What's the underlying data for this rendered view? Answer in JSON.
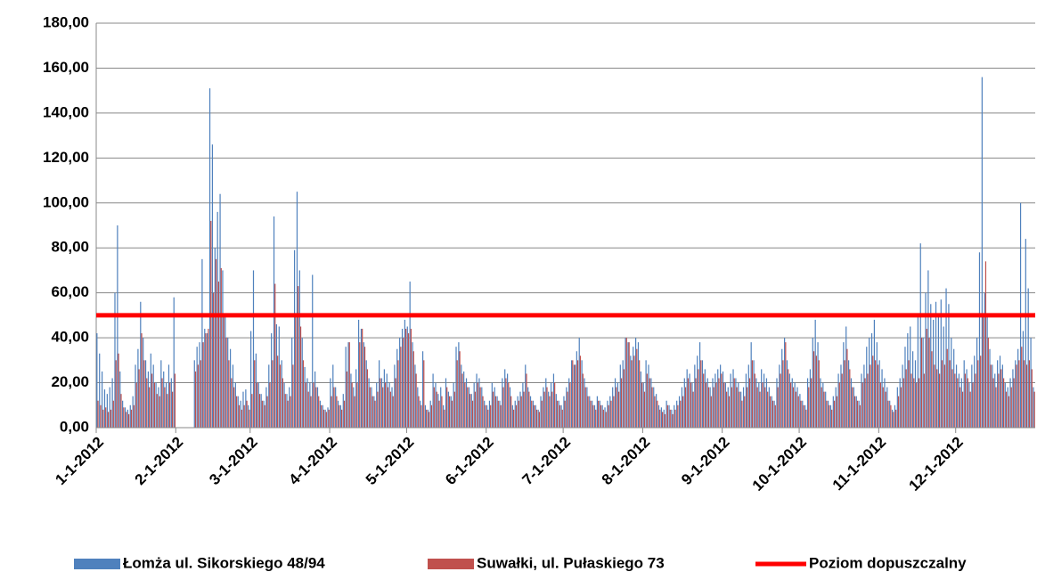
{
  "chart_data": {
    "type": "bar",
    "categories": [
      "1-1-2012",
      null,
      null,
      null,
      null,
      null,
      null,
      null,
      null,
      null,
      null,
      null,
      null,
      null,
      null,
      null,
      null,
      null,
      null,
      null,
      null,
      null,
      null,
      null,
      null,
      null,
      null,
      null,
      null,
      null,
      null,
      "2-1-2012",
      null,
      null,
      null,
      null,
      null,
      null,
      null,
      null,
      null,
      null,
      null,
      null,
      null,
      null,
      null,
      null,
      null,
      null,
      null,
      null,
      null,
      null,
      null,
      null,
      null,
      null,
      null,
      null,
      "3-1-2012",
      null,
      null,
      null,
      null,
      null,
      null,
      null,
      null,
      null,
      null,
      null,
      null,
      null,
      null,
      null,
      null,
      null,
      null,
      null,
      null,
      null,
      null,
      null,
      null,
      null,
      null,
      null,
      null,
      null,
      null,
      "4-1-2012",
      null,
      null,
      null,
      null,
      null,
      null,
      null,
      null,
      null,
      null,
      null,
      null,
      null,
      null,
      null,
      null,
      null,
      null,
      null,
      null,
      null,
      null,
      null,
      null,
      null,
      null,
      null,
      null,
      null,
      "5-1-2012",
      null,
      null,
      null,
      null,
      null,
      null,
      null,
      null,
      null,
      null,
      null,
      null,
      null,
      null,
      null,
      null,
      null,
      null,
      null,
      null,
      null,
      null,
      null,
      null,
      null,
      null,
      null,
      null,
      null,
      null,
      "6-1-2012",
      null,
      null,
      null,
      null,
      null,
      null,
      null,
      null,
      null,
      null,
      null,
      null,
      null,
      null,
      null,
      null,
      null,
      null,
      null,
      null,
      null,
      null,
      null,
      null,
      null,
      null,
      null,
      null,
      null,
      "7-1-2012",
      null,
      null,
      null,
      null,
      null,
      null,
      null,
      null,
      null,
      null,
      null,
      null,
      null,
      null,
      null,
      null,
      null,
      null,
      null,
      null,
      null,
      null,
      null,
      null,
      null,
      null,
      null,
      null,
      null,
      null,
      "8-1-2012",
      null,
      null,
      null,
      null,
      null,
      null,
      null,
      null,
      null,
      null,
      null,
      null,
      null,
      null,
      null,
      null,
      null,
      null,
      null,
      null,
      null,
      null,
      null,
      null,
      null,
      null,
      null,
      null,
      null,
      null,
      "9-1-2012",
      null,
      null,
      null,
      null,
      null,
      null,
      null,
      null,
      null,
      null,
      null,
      null,
      null,
      null,
      null,
      null,
      null,
      null,
      null,
      null,
      null,
      null,
      null,
      null,
      null,
      null,
      null,
      null,
      null,
      "10-1-2012",
      null,
      null,
      null,
      null,
      null,
      null,
      null,
      null,
      null,
      null,
      null,
      null,
      null,
      null,
      null,
      null,
      null,
      null,
      null,
      null,
      null,
      null,
      null,
      null,
      null,
      null,
      null,
      null,
      null,
      null,
      "11-1-2012",
      null,
      null,
      null,
      null,
      null,
      null,
      null,
      null,
      null,
      null,
      null,
      null,
      null,
      null,
      null,
      null,
      null,
      null,
      null,
      null,
      null,
      null,
      null,
      null,
      null,
      null,
      null,
      null,
      null,
      "12-1-2012",
      null,
      null,
      null,
      null,
      null,
      null,
      null,
      null,
      null,
      null,
      null,
      null,
      null,
      null,
      null,
      null,
      null,
      null,
      null,
      null,
      null,
      null,
      null,
      null,
      null,
      null,
      null,
      null,
      null,
      null
    ],
    "series": [
      {
        "name": "Łomża ul. Sikorskiego 48/94",
        "color": "#4f81bd",
        "values": [
          42,
          33,
          25,
          17,
          15,
          18,
          22,
          60,
          90,
          25,
          12,
          9,
          8,
          10,
          14,
          28,
          35,
          56,
          40,
          30,
          25,
          33,
          28,
          20,
          18,
          30,
          25,
          20,
          28,
          22,
          58,
          null,
          null,
          null,
          null,
          null,
          null,
          null,
          30,
          36,
          38,
          75,
          44,
          42,
          151,
          126,
          80,
          96,
          104,
          70,
          50,
          40,
          35,
          28,
          20,
          14,
          12,
          16,
          17,
          10,
          43,
          70,
          33,
          20,
          15,
          12,
          18,
          28,
          42,
          94,
          46,
          45,
          30,
          20,
          15,
          18,
          40,
          79,
          105,
          70,
          40,
          27,
          22,
          20,
          68,
          25,
          18,
          12,
          10,
          8,
          9,
          22,
          28,
          18,
          12,
          10,
          15,
          36,
          38,
          24,
          18,
          26,
          48,
          44,
          38,
          30,
          22,
          18,
          14,
          20,
          30,
          22,
          26,
          24,
          20,
          18,
          28,
          35,
          40,
          44,
          48,
          45,
          65,
          38,
          28,
          18,
          12,
          34,
          10,
          8,
          12,
          24,
          20,
          15,
          18,
          10,
          22,
          16,
          14,
          20,
          36,
          38,
          28,
          25,
          22,
          18,
          15,
          20,
          24,
          22,
          18,
          12,
          10,
          12,
          20,
          18,
          14,
          12,
          22,
          26,
          24,
          18,
          10,
          12,
          14,
          16,
          20,
          28,
          18,
          14,
          12,
          10,
          8,
          14,
          18,
          22,
          16,
          20,
          24,
          15,
          12,
          10,
          14,
          18,
          22,
          30,
          28,
          34,
          40,
          30,
          22,
          18,
          14,
          12,
          10,
          14,
          12,
          10,
          9,
          12,
          14,
          18,
          22,
          20,
          28,
          30,
          40,
          38,
          32,
          36,
          40,
          38,
          25,
          20,
          30,
          28,
          22,
          18,
          15,
          10,
          9,
          8,
          12,
          10,
          8,
          10,
          12,
          14,
          18,
          22,
          26,
          24,
          20,
          28,
          32,
          38,
          30,
          26,
          22,
          18,
          22,
          24,
          26,
          28,
          25,
          20,
          18,
          24,
          26,
          22,
          20,
          16,
          18,
          24,
          28,
          38,
          30,
          22,
          20,
          26,
          24,
          22,
          18,
          14,
          12,
          22,
          28,
          35,
          40,
          30,
          24,
          22,
          20,
          18,
          15,
          12,
          10,
          22,
          26,
          40,
          48,
          38,
          22,
          20,
          16,
          12,
          10,
          14,
          18,
          24,
          28,
          38,
          45,
          30,
          22,
          18,
          14,
          12,
          24,
          28,
          36,
          40,
          42,
          48,
          38,
          30,
          26,
          22,
          18,
          12,
          8,
          10,
          18,
          22,
          28,
          36,
          42,
          45,
          34,
          30,
          50,
          82,
          40,
          60,
          70,
          55,
          48,
          56,
          50,
          57,
          45,
          62,
          55,
          40,
          35,
          28,
          24,
          22,
          30,
          26,
          20,
          28,
          32,
          40,
          78,
          156,
          60,
          50,
          35,
          28,
          24,
          30,
          32,
          28,
          20,
          18,
          22,
          26,
          30,
          35,
          100,
          43,
          84,
          62,
          40,
          18
        ]
      },
      {
        "name": "Suwałki, ul. Pułaskiego 73",
        "color": "#c0504d",
        "values": [
          12,
          10,
          8,
          9,
          7,
          8,
          12,
          30,
          33,
          15,
          9,
          7,
          6,
          8,
          10,
          20,
          26,
          42,
          30,
          22,
          18,
          24,
          20,
          15,
          14,
          22,
          18,
          15,
          20,
          16,
          24,
          null,
          null,
          null,
          null,
          null,
          null,
          null,
          25,
          28,
          30,
          38,
          42,
          44,
          92,
          60,
          75,
          65,
          71,
          50,
          40,
          30,
          22,
          18,
          14,
          10,
          8,
          10,
          12,
          8,
          15,
          30,
          20,
          15,
          12,
          10,
          14,
          20,
          30,
          64,
          32,
          28,
          22,
          15,
          12,
          14,
          28,
          50,
          63,
          45,
          30,
          20,
          16,
          14,
          20,
          18,
          14,
          10,
          8,
          7,
          8,
          14,
          18,
          14,
          10,
          8,
          12,
          25,
          38,
          20,
          14,
          20,
          38,
          44,
          36,
          26,
          18,
          14,
          12,
          16,
          22,
          18,
          20,
          18,
          16,
          14,
          22,
          30,
          36,
          40,
          44,
          42,
          44,
          34,
          24,
          14,
          10,
          30,
          8,
          7,
          10,
          18,
          16,
          12,
          14,
          8,
          18,
          14,
          12,
          16,
          30,
          34,
          24,
          20,
          18,
          15,
          12,
          16,
          20,
          18,
          14,
          10,
          8,
          10,
          16,
          14,
          12,
          10,
          18,
          22,
          20,
          14,
          8,
          10,
          12,
          14,
          16,
          24,
          16,
          12,
          10,
          8,
          7,
          12,
          16,
          18,
          14,
          16,
          20,
          12,
          10,
          8,
          12,
          16,
          20,
          30,
          28,
          30,
          32,
          24,
          18,
          14,
          12,
          10,
          8,
          12,
          10,
          8,
          7,
          10,
          12,
          14,
          18,
          16,
          22,
          26,
          40,
          38,
          30,
          32,
          35,
          30,
          20,
          16,
          24,
          22,
          18,
          14,
          12,
          8,
          7,
          6,
          10,
          8,
          6,
          8,
          10,
          12,
          14,
          18,
          22,
          20,
          16,
          22,
          26,
          30,
          24,
          20,
          18,
          14,
          18,
          20,
          22,
          24,
          20,
          16,
          14,
          18,
          22,
          18,
          16,
          12,
          14,
          18,
          22,
          30,
          24,
          18,
          16,
          20,
          18,
          16,
          14,
          12,
          10,
          18,
          24,
          30,
          38,
          26,
          20,
          18,
          16,
          14,
          12,
          10,
          8,
          18,
          22,
          34,
          32,
          30,
          18,
          16,
          12,
          10,
          8,
          12,
          14,
          20,
          24,
          30,
          35,
          26,
          18,
          14,
          12,
          10,
          20,
          22,
          24,
          28,
          32,
          30,
          28,
          20,
          18,
          16,
          12,
          10,
          7,
          8,
          14,
          18,
          22,
          26,
          30,
          24,
          22,
          20,
          22,
          40,
          24,
          44,
          40,
          34,
          28,
          26,
          24,
          30,
          28,
          35,
          30,
          26,
          24,
          22,
          18,
          16,
          24,
          22,
          16,
          20,
          24,
          30,
          32,
          50,
          74,
          40,
          28,
          22,
          18,
          24,
          26,
          22,
          16,
          14,
          18,
          22,
          28,
          30,
          36,
          30,
          28,
          30,
          26,
          16
        ]
      }
    ],
    "limit": {
      "name": "Poziom dopuszczalny",
      "color": "#ff0000",
      "value": 50
    },
    "ylim": [
      0,
      180
    ],
    "yticks": [
      {
        "value": 0,
        "label": "0,00"
      },
      {
        "value": 20,
        "label": "20,00"
      },
      {
        "value": 40,
        "label": "40,00"
      },
      {
        "value": 60,
        "label": "60,00"
      },
      {
        "value": 80,
        "label": "80,00"
      },
      {
        "value": 100,
        "label": "100,00"
      },
      {
        "value": 120,
        "label": "120,00"
      },
      {
        "value": 140,
        "label": "140,00"
      },
      {
        "value": 160,
        "label": "160,00"
      },
      {
        "value": 180,
        "label": "180,00"
      }
    ],
    "grid": true,
    "legend": "bottom"
  }
}
